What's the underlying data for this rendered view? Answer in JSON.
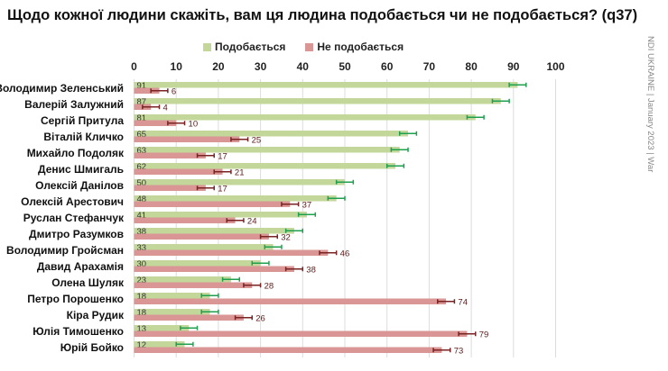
{
  "title": "Щодо кожної людини скажіть, вам ця людина подобається чи не подобається? (q37)",
  "side_note": "NDI UKRAINE | January 2023 | War",
  "colors": {
    "like": "#c4d79b",
    "dislike": "#d99694",
    "like_err": "#1fa04f",
    "dislike_err": "#7a2323"
  },
  "chart_data": {
    "type": "bar",
    "orientation": "horizontal",
    "title": "Щодо кожної людини скажіть, вам ця людина подобається чи не подобається? (q37)",
    "xlim": [
      0,
      100
    ],
    "x_ticks": [
      "0",
      "10",
      "20",
      "30",
      "40",
      "50",
      "60",
      "70",
      "80",
      "90",
      "100"
    ],
    "grid": true,
    "legend_position": "top",
    "error_bars": true,
    "categories": [
      "Володимир Зеленський",
      "Валерій Залужний",
      "Сергій Притула",
      "Віталій Кличко",
      "Михайло Подоляк",
      "Денис Шмигаль",
      "Олексій Данілов",
      "Олексій Арестович",
      "Руслан Стефанчук",
      "Дмитро Разумков",
      "Володимир Гройсман",
      "Давид Арахамія",
      "Олена Шуляк",
      "Петро Порошенко",
      "Кіра Рудик",
      "Юлія Тимошенко",
      "Юрій Бойко"
    ],
    "series": [
      {
        "name": "Подобається",
        "values": [
          91,
          87,
          81,
          65,
          63,
          62,
          50,
          48,
          41,
          38,
          33,
          30,
          23,
          18,
          18,
          13,
          12
        ]
      },
      {
        "name": "Не подобається",
        "values": [
          6,
          4,
          10,
          25,
          17,
          21,
          17,
          37,
          24,
          32,
          46,
          38,
          28,
          74,
          26,
          79,
          73
        ]
      }
    ]
  }
}
